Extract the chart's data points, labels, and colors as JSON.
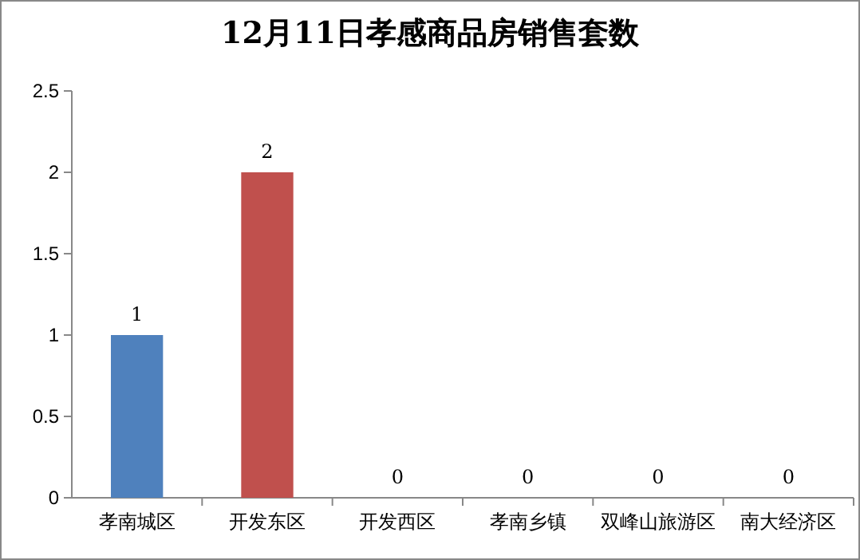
{
  "chart_data": {
    "type": "bar",
    "title": "12月11日孝感商品房销售套数",
    "categories": [
      "孝南城区",
      "开发东区",
      "开发西区",
      "孝南乡镇",
      "双峰山旅游区",
      "南大经济区"
    ],
    "values": [
      1,
      2,
      0,
      0,
      0,
      0
    ],
    "colors": [
      "#4f81bd",
      "#c0504d",
      "#9bbb59",
      "#8064a2",
      "#4bacc6",
      "#f79646"
    ],
    "ylim": [
      0,
      2.5
    ],
    "yticks": [
      0,
      0.5,
      1,
      1.5,
      2,
      2.5
    ],
    "grid": false,
    "data_labels": true
  }
}
